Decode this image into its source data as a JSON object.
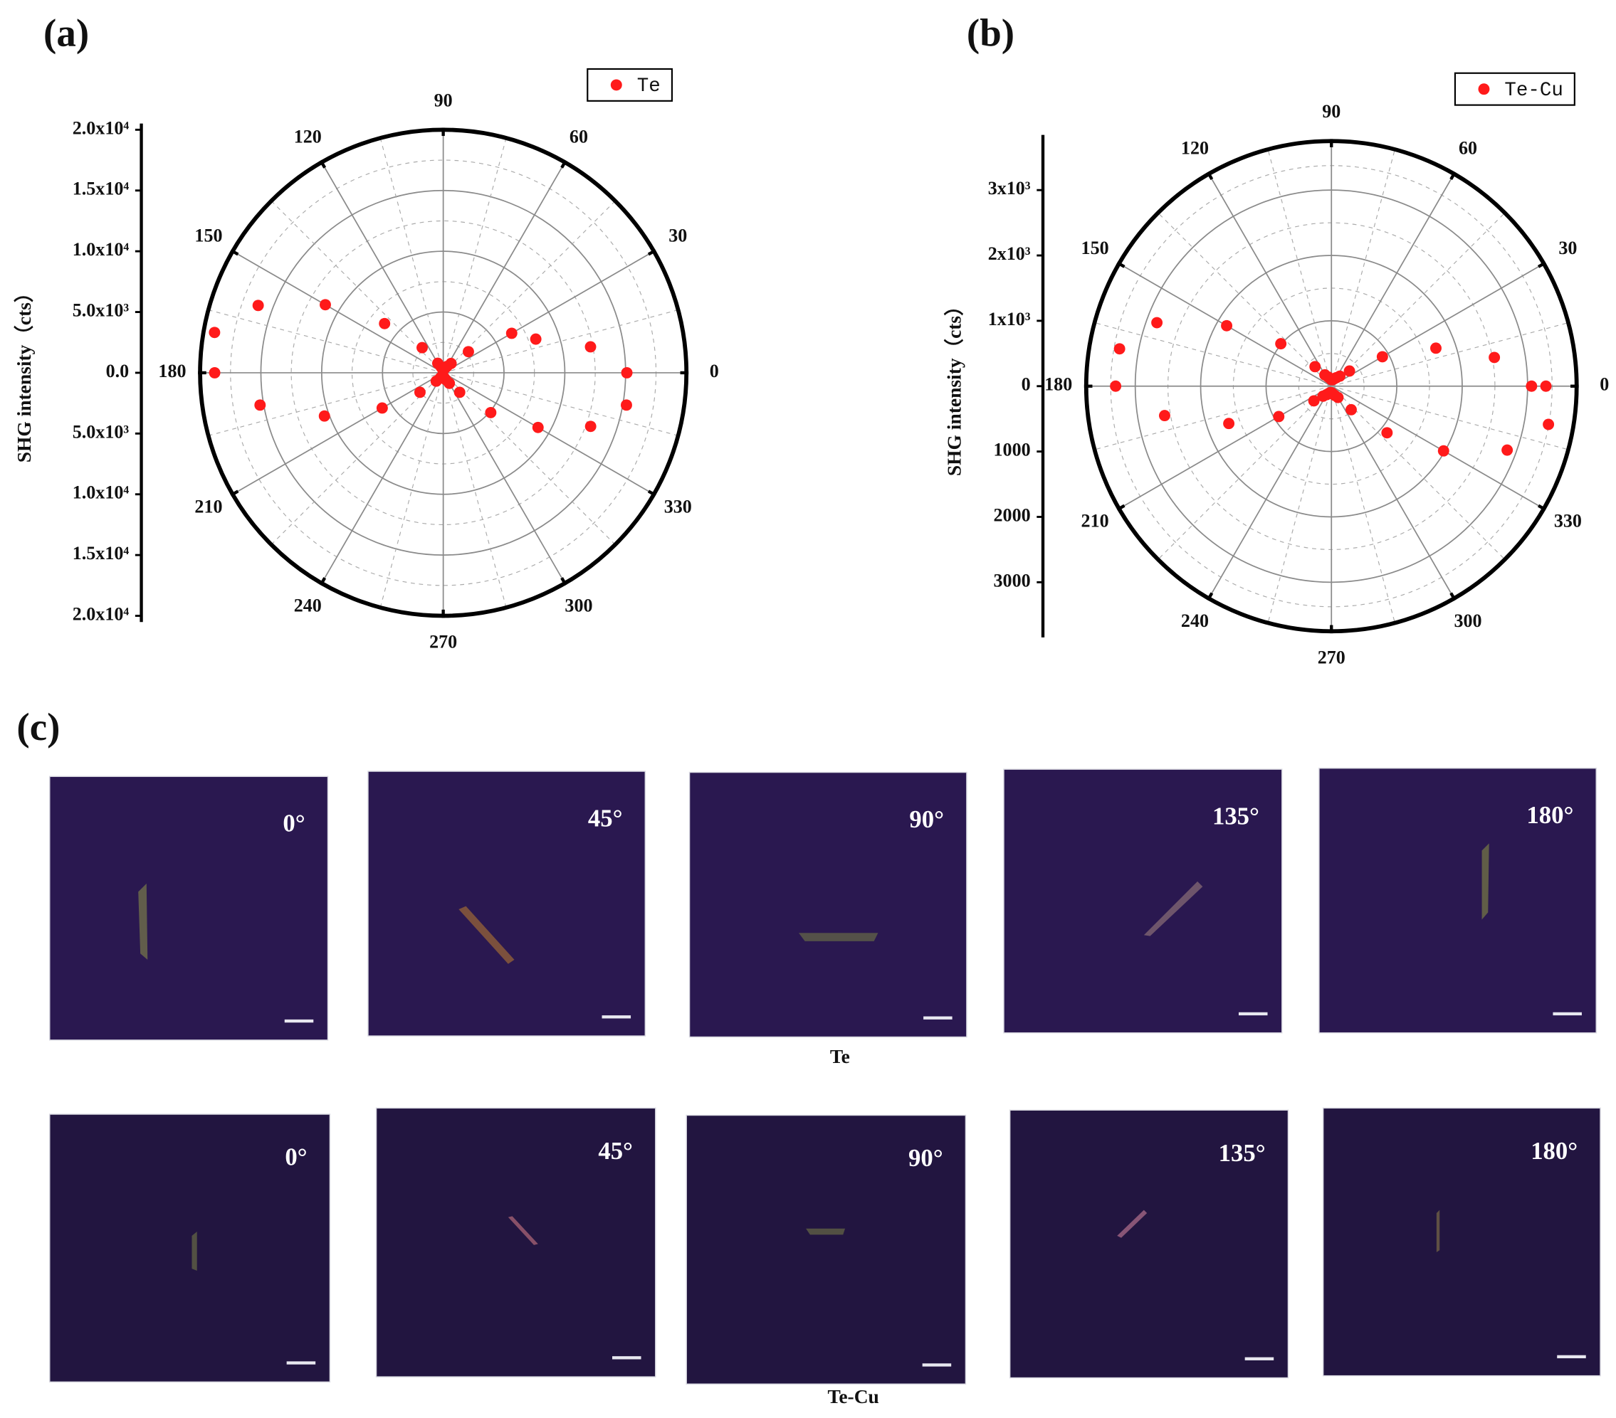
{
  "panel_labels": [
    "(a)",
    "(b)",
    "(c)"
  ],
  "chart_data": [
    {
      "type": "polar_scatter",
      "ylabel": "SHG intensity（cts）",
      "x": [
        0,
        10,
        20,
        30,
        40,
        50,
        60,
        70,
        80,
        90,
        100,
        110,
        120,
        130,
        140,
        150,
        160,
        170,
        180,
        190,
        200,
        210,
        220,
        230,
        240,
        250,
        260,
        270,
        280,
        290,
        300,
        310,
        320,
        330,
        340,
        350
      ],
      "series": [
        {
          "name": "Te",
          "color": "#ff1a1a",
          "values": [
            15100,
            12300,
            8100,
            6500,
            2700,
            1000,
            600,
            400,
            300,
            300,
            300,
            500,
            900,
            2700,
            6300,
            11200,
            16200,
            19100,
            18800,
            15300,
            10400,
            5800,
            2500,
            900,
            500,
            300,
            300,
            300,
            400,
            600,
            1000,
            2100,
            5100,
            9000,
            12900,
            15300
          ]
        }
      ],
      "rlim": [
        0,
        20000
      ],
      "rticks": [
        {
          "value": 0,
          "label": "0.0"
        },
        {
          "value": 5000,
          "label": "5.0x10³"
        },
        {
          "value": 10000,
          "label": "1.0x10⁴"
        },
        {
          "value": 15000,
          "label": "1.5x10⁴"
        },
        {
          "value": 20000,
          "label": "2.0x10⁴"
        }
      ],
      "rticks_lower": [
        {
          "value": 5000,
          "label": "5.0x10³"
        },
        {
          "value": 10000,
          "label": "1.0x10⁴"
        },
        {
          "value": 15000,
          "label": "1.5x10⁴"
        },
        {
          "value": 20000,
          "label": "2.0x10⁴"
        }
      ],
      "thetaticks": [
        0,
        30,
        60,
        90,
        120,
        150,
        180,
        210,
        240,
        270,
        300,
        330
      ],
      "grid": true
    },
    {
      "type": "polar_scatter",
      "ylabel": "SHG intensity（cts）",
      "x": [
        0,
        10,
        20,
        30,
        40,
        50,
        60,
        70,
        80,
        90,
        100,
        110,
        120,
        130,
        140,
        150,
        160,
        170,
        180,
        190,
        200,
        210,
        220,
        230,
        240,
        250,
        260,
        270,
        280,
        290,
        300,
        310,
        320,
        330,
        340,
        350,
        360
      ],
      "series": [
        {
          "name": "Te-Cu",
          "color": "#ff1a1a",
          "values": [
            3060,
            2530,
            1700,
            900,
            360,
            200,
            150,
            120,
            100,
            100,
            120,
            150,
            200,
            390,
            1010,
            1850,
            2840,
            3290,
            3300,
            2590,
            1670,
            930,
            350,
            200,
            150,
            120,
            100,
            100,
            120,
            150,
            200,
            470,
            1110,
            1980,
            2860,
            3370,
            3280
          ]
        }
      ],
      "rlim": [
        0,
        3750
      ],
      "rticks": [
        0,
        {
          "value": 1000,
          "label": "1x10³"
        },
        {
          "value": 2000,
          "label": "2x10³"
        },
        {
          "value": 3000,
          "label": "3x10³"
        }
      ],
      "rticks_lower": [
        1000,
        2000,
        3000
      ],
      "thetaticks": [
        0,
        30,
        60,
        90,
        120,
        150,
        180,
        210,
        240,
        270,
        300,
        330
      ],
      "grid": true
    }
  ],
  "micrographs": [
    {
      "caption": "Te",
      "angles": [
        "0°",
        "45°",
        "90°",
        "135°",
        "180°"
      ]
    },
    {
      "caption": "Te-Cu",
      "angles": [
        "0°",
        "45°",
        "90°",
        "135°",
        "180°"
      ]
    }
  ]
}
